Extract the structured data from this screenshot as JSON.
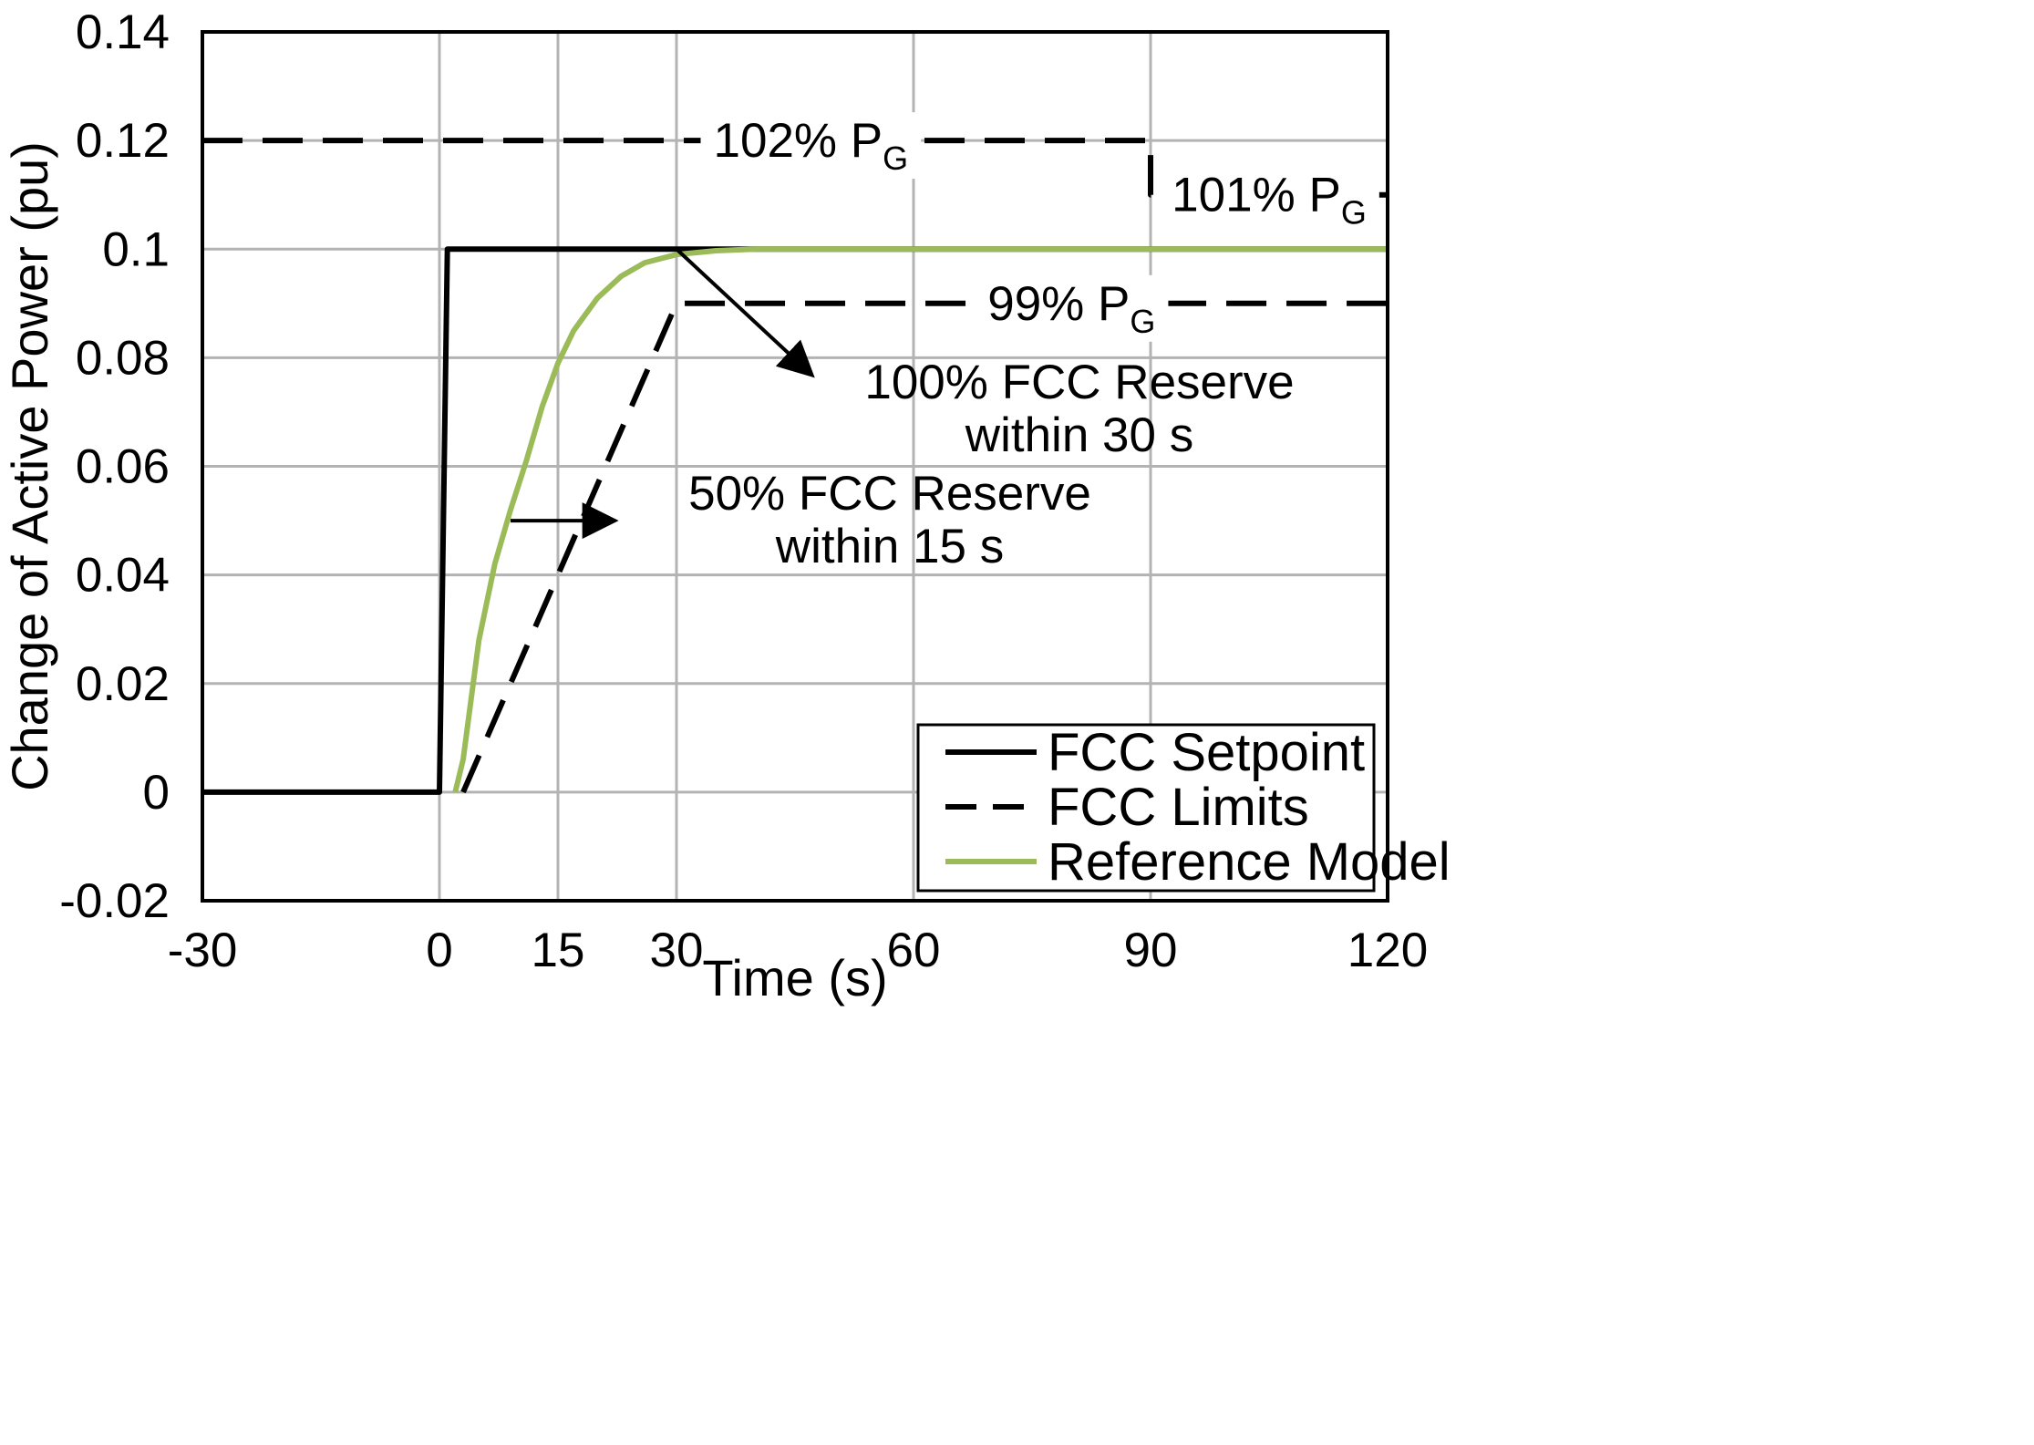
{
  "chart_data": {
    "type": "line",
    "title": "",
    "xlabel": "Time (s)",
    "ylabel": "Change of Active Power (pu)",
    "xlim": [
      -30,
      120
    ],
    "ylim": [
      -0.02,
      0.14
    ],
    "xticks": [
      -30,
      0,
      15,
      30,
      60,
      90,
      120
    ],
    "xtick_labels": [
      "-30",
      "0",
      "15",
      "30",
      "60",
      "90",
      "120"
    ],
    "yticks": [
      -0.02,
      0,
      0.02,
      0.04,
      0.06,
      0.08,
      0.1,
      0.12,
      0.14
    ],
    "ytick_labels": [
      "-0.02",
      "0",
      "0.02",
      "0.04",
      "0.06",
      "0.08",
      "0.1",
      "0.12",
      "0.14"
    ],
    "grid": true,
    "legend_position": "bottom-right",
    "colors": {
      "setpoint": "#000000",
      "limits": "#000000",
      "reference": "#9bbb59",
      "grid": "#b3b3b3"
    },
    "series": [
      {
        "name": "FCC Setpoint",
        "style": "solid",
        "x": [
          -30,
          0,
          1,
          120
        ],
        "y": [
          0,
          0,
          0.1,
          0.1
        ]
      },
      {
        "name": "FCC Limits",
        "style": "dashed",
        "x": [
          -30,
          90,
          90,
          120
        ],
        "y": [
          0.12,
          0.12,
          0.11,
          0.11
        ]
      },
      {
        "name": "FCC Limits (lower)",
        "style": "dashed",
        "legend": false,
        "x": [
          3,
          30,
          30,
          120
        ],
        "y": [
          0,
          0.09,
          0.09,
          0.09
        ]
      },
      {
        "name": "Reference Model",
        "style": "solid",
        "x": [
          2,
          3,
          5,
          7,
          9,
          11,
          13,
          15,
          17,
          20,
          23,
          26,
          30,
          35,
          40,
          50,
          60,
          120
        ],
        "y": [
          0,
          0.006,
          0.028,
          0.042,
          0.052,
          0.061,
          0.071,
          0.079,
          0.085,
          0.091,
          0.095,
          0.0975,
          0.099,
          0.0997,
          0.1,
          0.1,
          0.1,
          0.1
        ]
      }
    ],
    "annotations": [
      {
        "id": "a102",
        "text": "102% P",
        "sub": "G",
        "x": 47,
        "y": 0.12
      },
      {
        "id": "a101",
        "text": "101% P",
        "sub": "G",
        "x": 105,
        "y": 0.11
      },
      {
        "id": "a99",
        "text": "99% P",
        "sub": "G",
        "x": 80,
        "y": 0.09
      },
      {
        "id": "a100fcc",
        "lines": [
          "100% FCC Reserve",
          "within 30 s"
        ],
        "x": 81,
        "y": 0.0725,
        "arrow_from": [
          30,
          0.1
        ],
        "arrow_to": [
          47,
          0.077
        ]
      },
      {
        "id": "a50fcc",
        "lines": [
          "50% FCC Reserve",
          "within 15 s"
        ],
        "x": 57,
        "y": 0.052,
        "arrow_from": [
          9,
          0.05
        ],
        "arrow_to": [
          22,
          0.05
        ]
      }
    ]
  }
}
